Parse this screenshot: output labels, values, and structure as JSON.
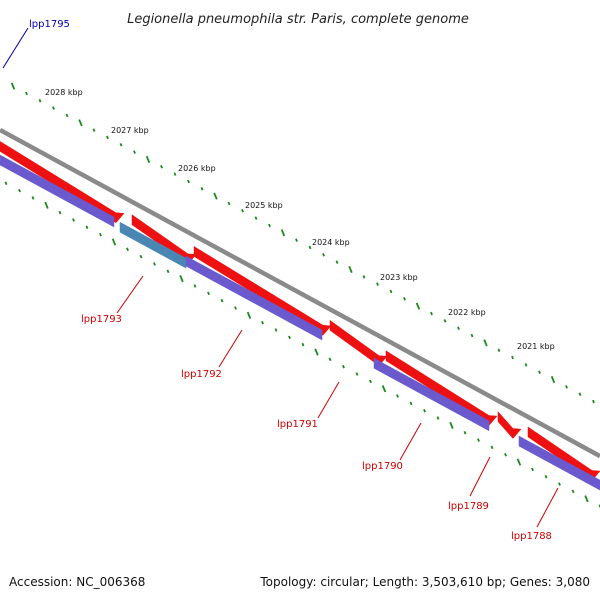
{
  "title": "Legionella pneumophila str. Paris, complete genome",
  "footer": {
    "accession": "Accession: NC_006368",
    "summary": "Topology: circular; Length: 3,503,610 bp; Genes: 3,080"
  },
  "colors": {
    "backbone": "#8a8a8a",
    "forward_gene": "#ee1111",
    "reverse_gene": "#6a5acd",
    "highlight_gene": "#4a86b4",
    "tick": "#1a8a1a",
    "label_red": "#cc0000",
    "label_blue": "#0000aa"
  },
  "kbp_labels": [
    "2028 kbp",
    "2027 kbp",
    "2026 kbp",
    "2025 kbp",
    "2024 kbp",
    "2023 kbp",
    "2022 kbp",
    "2021 kbp"
  ],
  "gene_labels": [
    {
      "text": "lpp1795",
      "color": "blue"
    },
    {
      "text": "lpp1793",
      "color": "red"
    },
    {
      "text": "lpp1792",
      "color": "red"
    },
    {
      "text": "lpp1791",
      "color": "red"
    },
    {
      "text": "lpp1790",
      "color": "red"
    },
    {
      "text": "lpp1789",
      "color": "red"
    },
    {
      "text": "lpp1788",
      "color": "red"
    }
  ]
}
